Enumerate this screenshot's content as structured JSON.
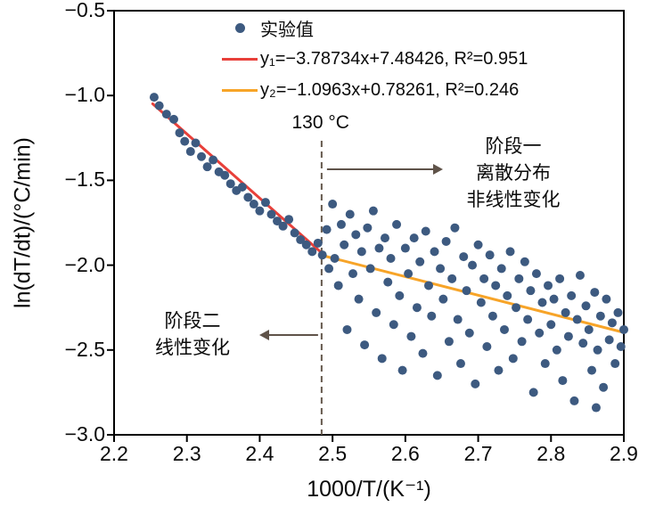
{
  "page": {
    "background": "#ffffff"
  },
  "axes": {
    "x_label": "1000/T/(K⁻¹)",
    "y_label": "ln(dT/dt)/(°C/min)",
    "x_ticks": [
      {
        "v": 2.2,
        "label": "2.2"
      },
      {
        "v": 2.3,
        "label": "2.3"
      },
      {
        "v": 2.4,
        "label": "2.4"
      },
      {
        "v": 2.5,
        "label": "2.5"
      },
      {
        "v": 2.6,
        "label": "2.6"
      },
      {
        "v": 2.7,
        "label": "2.7"
      },
      {
        "v": 2.8,
        "label": "2.8"
      },
      {
        "v": 2.9,
        "label": "2.9"
      }
    ],
    "y_ticks": [
      {
        "v": -0.5,
        "label": "−0.5"
      },
      {
        "v": -1.0,
        "label": "−1.0"
      },
      {
        "v": -1.5,
        "label": "−1.5"
      },
      {
        "v": -2.0,
        "label": "−2.0"
      },
      {
        "v": -2.5,
        "label": "−2.5"
      },
      {
        "v": -3.0,
        "label": "−3.0"
      }
    ]
  },
  "legend": {
    "items": [
      {
        "marker": "dot",
        "label": "实验值",
        "color": "#3d5a80"
      },
      {
        "marker": "line",
        "label": "y₁=−3.78734x+7.48426, R²=0.951",
        "color": "#e8403a"
      },
      {
        "marker": "line",
        "label": "y₂=−1.0963x+0.78261, R²=0.246",
        "color": "#f7a428"
      }
    ]
  },
  "annotations": {
    "vline_label": "130 °C",
    "stage1": {
      "lines": [
        "阶段一",
        "离散分布",
        "非线性变化"
      ]
    },
    "stage2": {
      "lines": [
        "阶段二",
        "线性变化"
      ]
    },
    "arrow_color": "#5f5349"
  },
  "chart_data": {
    "type": "scatter",
    "title": "",
    "xlabel": "1000/T/(K⁻¹)",
    "ylabel": "ln(dT/dt)/(°C/min)",
    "xlim": [
      2.2,
      2.9
    ],
    "ylim": [
      -3.0,
      -0.5
    ],
    "grid": false,
    "legend_position": "top-center-inside",
    "vline": {
      "x": 2.485,
      "label": "130 °C",
      "style": "dashed",
      "color": "#665a4e"
    },
    "series": [
      {
        "name": "实验值",
        "type": "scatter",
        "color": "#3d5a80",
        "points": [
          [
            2.255,
            -1.01
          ],
          [
            2.262,
            -1.06
          ],
          [
            2.272,
            -1.11
          ],
          [
            2.282,
            -1.14
          ],
          [
            2.29,
            -1.22
          ],
          [
            2.297,
            -1.27
          ],
          [
            2.305,
            -1.33
          ],
          [
            2.312,
            -1.28
          ],
          [
            2.32,
            -1.36
          ],
          [
            2.328,
            -1.42
          ],
          [
            2.336,
            -1.38
          ],
          [
            2.344,
            -1.45
          ],
          [
            2.352,
            -1.47
          ],
          [
            2.36,
            -1.52
          ],
          [
            2.368,
            -1.56
          ],
          [
            2.376,
            -1.54
          ],
          [
            2.384,
            -1.6
          ],
          [
            2.392,
            -1.64
          ],
          [
            2.4,
            -1.68
          ],
          [
            2.408,
            -1.63
          ],
          [
            2.416,
            -1.7
          ],
          [
            2.424,
            -1.74
          ],
          [
            2.432,
            -1.77
          ],
          [
            2.44,
            -1.73
          ],
          [
            2.448,
            -1.81
          ],
          [
            2.456,
            -1.85
          ],
          [
            2.464,
            -1.88
          ],
          [
            2.472,
            -1.92
          ],
          [
            2.48,
            -1.87
          ],
          [
            2.486,
            -1.94
          ],
          [
            2.492,
            -1.79
          ],
          [
            2.495,
            -2.02
          ],
          [
            2.5,
            -1.64
          ],
          [
            2.503,
            -1.96
          ],
          [
            2.508,
            -2.12
          ],
          [
            2.512,
            -1.76
          ],
          [
            2.516,
            -1.88
          ],
          [
            2.52,
            -2.38
          ],
          [
            2.524,
            -1.7
          ],
          [
            2.528,
            -2.05
          ],
          [
            2.532,
            -1.82
          ],
          [
            2.536,
            -2.2
          ],
          [
            2.54,
            -1.92
          ],
          [
            2.544,
            -2.47
          ],
          [
            2.548,
            -1.78
          ],
          [
            2.552,
            -2.02
          ],
          [
            2.556,
            -1.68
          ],
          [
            2.56,
            -2.28
          ],
          [
            2.564,
            -1.9
          ],
          [
            2.568,
            -2.55
          ],
          [
            2.572,
            -1.84
          ],
          [
            2.576,
            -2.1
          ],
          [
            2.58,
            -1.96
          ],
          [
            2.584,
            -2.35
          ],
          [
            2.588,
            -1.76
          ],
          [
            2.592,
            -2.18
          ],
          [
            2.596,
            -2.62
          ],
          [
            2.6,
            -1.9
          ],
          [
            2.604,
            -2.05
          ],
          [
            2.608,
            -2.42
          ],
          [
            2.612,
            -1.84
          ],
          [
            2.616,
            -2.25
          ],
          [
            2.62,
            -1.98
          ],
          [
            2.624,
            -2.52
          ],
          [
            2.628,
            -1.8
          ],
          [
            2.632,
            -2.12
          ],
          [
            2.636,
            -2.3
          ],
          [
            2.64,
            -1.92
          ],
          [
            2.644,
            -2.65
          ],
          [
            2.648,
            -2.02
          ],
          [
            2.652,
            -2.2
          ],
          [
            2.656,
            -1.86
          ],
          [
            2.66,
            -2.45
          ],
          [
            2.664,
            -2.08
          ],
          [
            2.668,
            -1.78
          ],
          [
            2.672,
            -2.32
          ],
          [
            2.676,
            -2.58
          ],
          [
            2.68,
            -1.95
          ],
          [
            2.684,
            -2.15
          ],
          [
            2.688,
            -2.4
          ],
          [
            2.692,
            -2.0
          ],
          [
            2.696,
            -2.7
          ],
          [
            2.7,
            -1.88
          ],
          [
            2.704,
            -2.22
          ],
          [
            2.708,
            -2.08
          ],
          [
            2.712,
            -2.48
          ],
          [
            2.716,
            -1.94
          ],
          [
            2.72,
            -2.3
          ],
          [
            2.724,
            -2.12
          ],
          [
            2.728,
            -2.62
          ],
          [
            2.732,
            -2.02
          ],
          [
            2.736,
            -2.38
          ],
          [
            2.74,
            -2.18
          ],
          [
            2.744,
            -1.92
          ],
          [
            2.748,
            -2.55
          ],
          [
            2.752,
            -2.25
          ],
          [
            2.756,
            -2.08
          ],
          [
            2.76,
            -2.45
          ],
          [
            2.764,
            -1.98
          ],
          [
            2.768,
            -2.32
          ],
          [
            2.772,
            -2.15
          ],
          [
            2.776,
            -2.75
          ],
          [
            2.78,
            -2.05
          ],
          [
            2.784,
            -2.4
          ],
          [
            2.788,
            -2.22
          ],
          [
            2.792,
            -2.58
          ],
          [
            2.796,
            -2.12
          ],
          [
            2.8,
            -2.35
          ],
          [
            2.804,
            -2.2
          ],
          [
            2.808,
            -2.5
          ],
          [
            2.812,
            -2.08
          ],
          [
            2.816,
            -2.68
          ],
          [
            2.82,
            -2.28
          ],
          [
            2.824,
            -2.42
          ],
          [
            2.828,
            -2.18
          ],
          [
            2.832,
            -2.8
          ],
          [
            2.836,
            -2.32
          ],
          [
            2.84,
            -2.06
          ],
          [
            2.844,
            -2.46
          ],
          [
            2.848,
            -2.24
          ],
          [
            2.852,
            -2.38
          ],
          [
            2.856,
            -2.62
          ],
          [
            2.86,
            -2.16
          ],
          [
            2.862,
            -2.84
          ],
          [
            2.864,
            -2.5
          ],
          [
            2.868,
            -2.3
          ],
          [
            2.872,
            -2.72
          ],
          [
            2.876,
            -2.2
          ],
          [
            2.88,
            -2.44
          ],
          [
            2.884,
            -2.34
          ],
          [
            2.888,
            -2.58
          ],
          [
            2.892,
            -2.28
          ],
          [
            2.896,
            -2.48
          ],
          [
            2.9,
            -2.38
          ]
        ]
      },
      {
        "name": "y1",
        "type": "line",
        "color": "#e8403a",
        "equation": "y1 = -3.78734x + 7.48426",
        "slope": -3.78734,
        "intercept": 7.48426,
        "r2": 0.951,
        "x_range": [
          2.253,
          2.49
        ]
      },
      {
        "name": "y2",
        "type": "line",
        "color": "#f7a428",
        "equation": "y2 = -1.0963x + 0.78261",
        "slope": -1.0963,
        "intercept": 0.78261,
        "r2": 0.246,
        "x_range": [
          2.482,
          2.9
        ]
      }
    ]
  }
}
